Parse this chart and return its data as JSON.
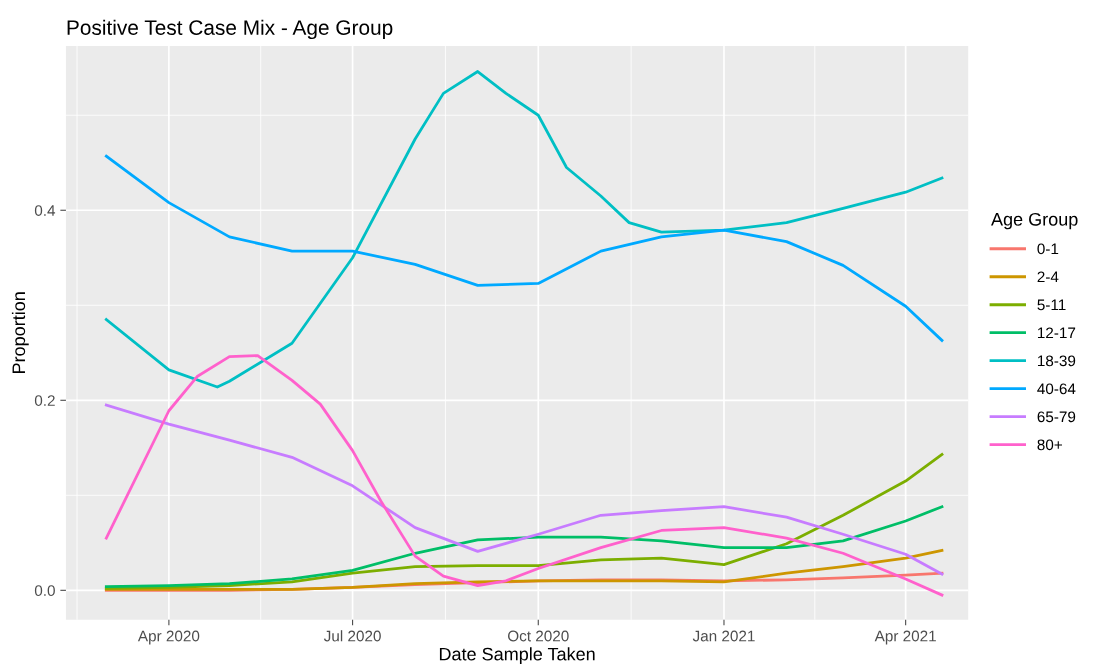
{
  "chart_data": {
    "type": "line",
    "title": "Positive Test Case Mix - Age Group",
    "xlabel": "Date Sample Taken",
    "ylabel": "Proportion",
    "legend_title": "Age Group",
    "x": [
      "2020-03-01",
      "2020-04-01",
      "2020-05-01",
      "2020-06-01",
      "2020-07-01",
      "2020-08-01",
      "2020-09-01",
      "2020-10-01",
      "2020-11-01",
      "2020-12-01",
      "2021-01-01",
      "2021-02-01",
      "2021-03-01",
      "2021-04-01",
      "2021-04-19"
    ],
    "series": [
      {
        "name": "0-1",
        "color": "#f8766d",
        "values": [
          0.0,
          0.0,
          0.0,
          0.001,
          0.003,
          0.006,
          0.008,
          0.01,
          0.011,
          0.011,
          0.01,
          0.011,
          0.013,
          0.016,
          0.018
        ]
      },
      {
        "name": "2-4",
        "color": "#cd9600",
        "values": [
          0.001,
          0.001,
          0.001,
          0.001,
          0.003,
          0.007,
          0.009,
          0.01,
          0.01,
          0.01,
          0.009,
          0.018,
          0.025,
          0.034,
          0.042
        ]
      },
      {
        "name": "5-11",
        "color": "#7cae00",
        "values": [
          0.002,
          0.003,
          0.005,
          0.009,
          0.018,
          0.025,
          0.026,
          0.026,
          0.032,
          0.034,
          0.027,
          0.049,
          0.079,
          0.115,
          0.143
        ]
      },
      {
        "name": "12-17",
        "color": "#00be67",
        "values": [
          0.004,
          0.005,
          0.007,
          0.012,
          0.021,
          0.039,
          0.053,
          0.056,
          0.056,
          0.052,
          0.045,
          0.045,
          0.052,
          0.073,
          0.088
        ]
      },
      {
        "name": "18-39",
        "color": "#00bfc4",
        "x": [
          "2020-03-01",
          "2020-04-01",
          "2020-04-25",
          "2020-05-01",
          "2020-06-01",
          "2020-07-01",
          "2020-08-01",
          "2020-08-15",
          "2020-09-01",
          "2020-09-15",
          "2020-10-01",
          "2020-10-15",
          "2020-11-01",
          "2020-11-15",
          "2020-12-01",
          "2021-01-01",
          "2021-02-01",
          "2021-03-01",
          "2021-04-01",
          "2021-04-19"
        ],
        "values": [
          0.285,
          0.232,
          0.214,
          0.22,
          0.26,
          0.35,
          0.475,
          0.523,
          0.546,
          0.523,
          0.5,
          0.445,
          0.415,
          0.387,
          0.377,
          0.379,
          0.387,
          0.402,
          0.419,
          0.434
        ]
      },
      {
        "name": "40-64",
        "color": "#00a9ff",
        "values": [
          0.457,
          0.408,
          0.372,
          0.357,
          0.357,
          0.343,
          0.321,
          0.323,
          0.357,
          0.372,
          0.379,
          0.367,
          0.342,
          0.299,
          0.263
        ]
      },
      {
        "name": "65-79",
        "color": "#c77cff",
        "values": [
          0.195,
          0.175,
          0.158,
          0.14,
          0.11,
          0.066,
          0.041,
          0.059,
          0.079,
          0.084,
          0.088,
          0.077,
          0.059,
          0.038,
          0.017
        ]
      },
      {
        "name": "80+",
        "color": "#ff61cc",
        "x": [
          "2020-03-01",
          "2020-04-01",
          "2020-04-15",
          "2020-05-01",
          "2020-05-15",
          "2020-06-01",
          "2020-06-15",
          "2020-07-01",
          "2020-07-15",
          "2020-08-01",
          "2020-08-15",
          "2020-09-01",
          "2020-09-15",
          "2020-10-01",
          "2020-11-01",
          "2020-12-01",
          "2021-01-01",
          "2021-02-01",
          "2021-03-01",
          "2021-04-01",
          "2021-04-19"
        ],
        "values": [
          0.055,
          0.189,
          0.225,
          0.246,
          0.247,
          0.221,
          0.196,
          0.147,
          0.094,
          0.036,
          0.015,
          0.005,
          0.01,
          0.023,
          0.045,
          0.063,
          0.066,
          0.055,
          0.039,
          0.012,
          -0.005
        ]
      }
    ],
    "xlim": [
      "2020-02-10",
      "2021-05-02"
    ],
    "ylim": [
      -0.031,
      0.573
    ],
    "xticks": [
      {
        "value": "2020-04-01",
        "label": "Apr 2020"
      },
      {
        "value": "2020-07-01",
        "label": "Jul 2020"
      },
      {
        "value": "2020-10-01",
        "label": "Oct 2020"
      },
      {
        "value": "2021-01-01",
        "label": "Jan 2021"
      },
      {
        "value": "2021-04-01",
        "label": "Apr 2021"
      }
    ],
    "yticks": [
      {
        "value": 0.0,
        "label": "0.0"
      },
      {
        "value": 0.2,
        "label": "0.2"
      },
      {
        "value": 0.4,
        "label": "0.4"
      }
    ],
    "grid": true,
    "legend": "right",
    "line_style": "solid",
    "marker": "none"
  }
}
